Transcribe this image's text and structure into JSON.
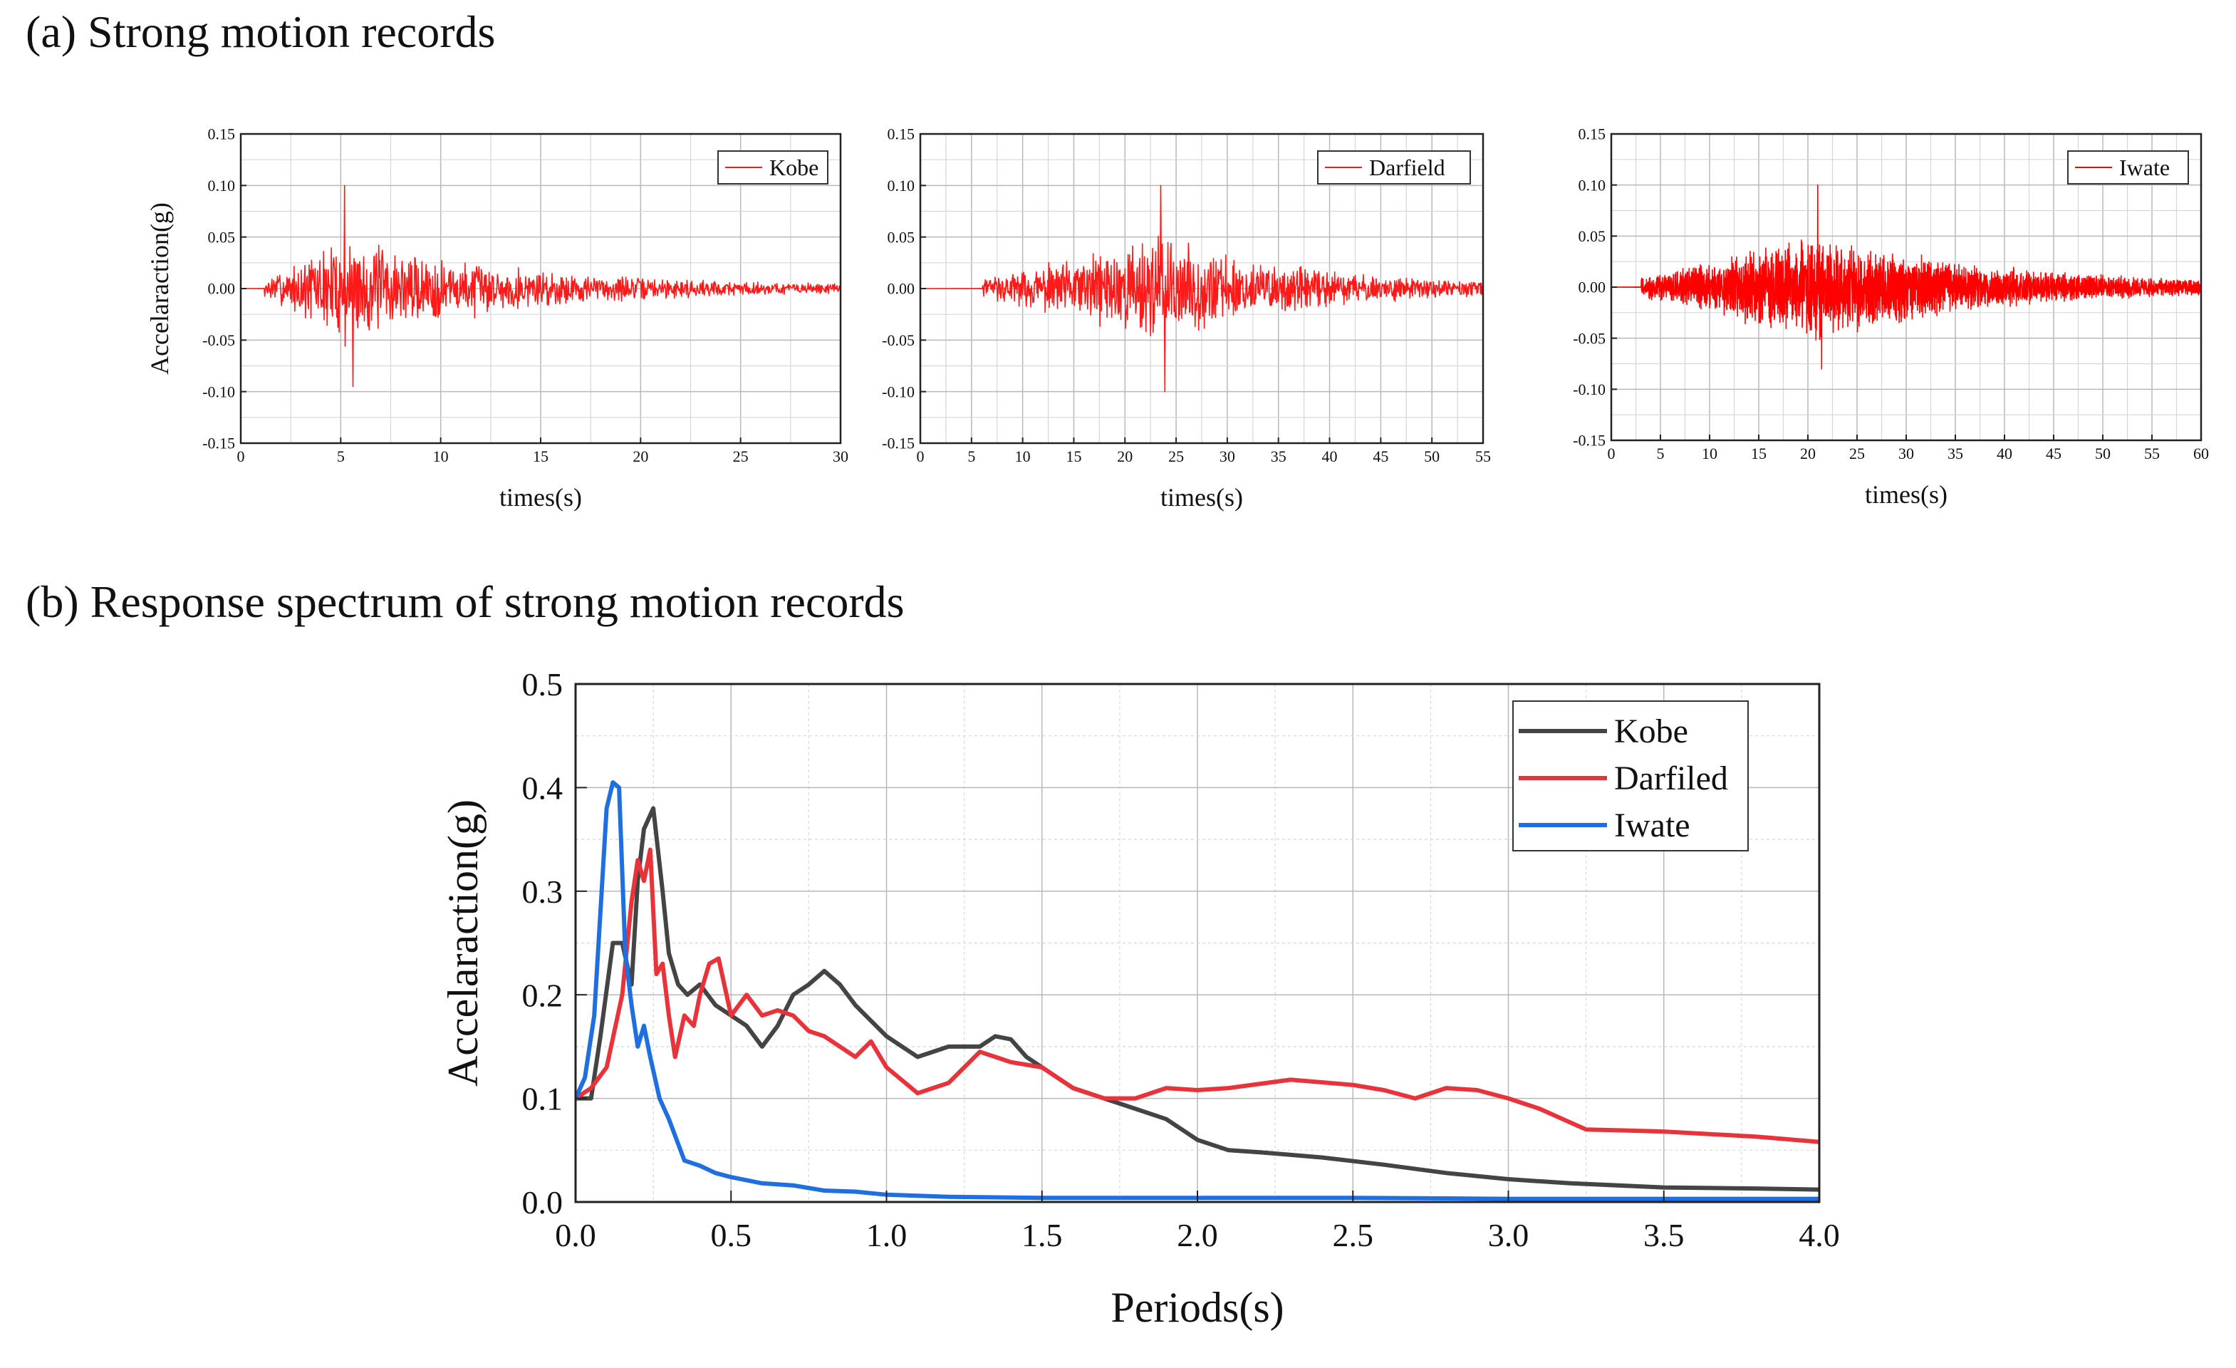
{
  "section_a": {
    "title": "(a) Strong motion records"
  },
  "section_b": {
    "title": "(b) Response spectrum of strong motion records"
  },
  "chart_data": [
    {
      "type": "line",
      "title": "Kobe",
      "xlabel": "times(s)",
      "ylabel": "Accelaraction(g)",
      "xlim": [
        0,
        30
      ],
      "ylim": [
        -0.15,
        0.15
      ],
      "xticks": [
        0,
        5,
        10,
        15,
        20,
        25,
        30
      ],
      "xtick_labels": [
        "0",
        "5",
        "10",
        "15",
        "20",
        "25",
        "30"
      ],
      "yticks": [
        0.15,
        0.1,
        0.05,
        0.0,
        -0.05,
        -0.1,
        -0.15
      ],
      "ytick_labels": [
        "0.15",
        "0.10",
        "0.05",
        "0.00",
        "-0.05",
        "-0.10",
        "-0.15"
      ],
      "grid": true,
      "legend": "top-right",
      "series": [
        {
          "name": "Kobe",
          "color": "#ff1a1a",
          "onset": 1.2,
          "peak_time": 5.2,
          "peak": 0.1,
          "min": -0.095,
          "decay_time": 9.0,
          "dt": 0.03,
          "seed": 7
        }
      ]
    },
    {
      "type": "line",
      "title": "Darfield",
      "xlabel": "times(s)",
      "ylabel": "",
      "xlim": [
        0,
        55
      ],
      "ylim": [
        -0.15,
        0.15
      ],
      "xticks": [
        0,
        5,
        10,
        15,
        20,
        25,
        30,
        35,
        40,
        45,
        50,
        55
      ],
      "xtick_labels": [
        "0",
        "5",
        "10",
        "15",
        "20",
        "25",
        "30",
        "35",
        "40",
        "45",
        "50",
        "55"
      ],
      "yticks": [
        0.15,
        0.1,
        0.05,
        0.0,
        -0.05,
        -0.1,
        -0.15
      ],
      "ytick_labels": [
        "0.15",
        "0.10",
        "0.05",
        "0.00",
        "-0.05",
        "-0.10",
        "-0.15"
      ],
      "grid": true,
      "legend": "top-right",
      "series": [
        {
          "name": "Darfield",
          "color": "#ff1a1a",
          "onset": 6.0,
          "peak_time": 23.5,
          "peak": 0.1,
          "min": -0.1,
          "decay_time": 14.0,
          "dt": 0.05,
          "seed": 11
        }
      ]
    },
    {
      "type": "line",
      "title": "Iwate",
      "xlabel": "times(s)",
      "ylabel": "",
      "xlim": [
        0,
        60
      ],
      "ylim": [
        -0.15,
        0.15
      ],
      "xticks": [
        0,
        5,
        10,
        15,
        20,
        25,
        30,
        35,
        40,
        45,
        50,
        55,
        60
      ],
      "xtick_labels": [
        "0",
        "5",
        "10",
        "15",
        "20",
        "25",
        "30",
        "35",
        "40",
        "45",
        "50",
        "55",
        "60"
      ],
      "yticks": [
        0.15,
        0.1,
        0.05,
        0.0,
        -0.05,
        -0.1,
        -0.15
      ],
      "ytick_labels": [
        "0.15",
        "0.10",
        "0.05",
        "0.00",
        "-0.05",
        "-0.10",
        "-0.15"
      ],
      "grid": true,
      "legend": "top-right",
      "series": [
        {
          "name": "Iwate",
          "color": "#ff0000",
          "onset": 3.0,
          "peak_time": 21.0,
          "peak": 0.1,
          "min": -0.08,
          "decay_time": 18.0,
          "dt": 0.02,
          "seed": 23
        }
      ]
    },
    {
      "type": "line",
      "title": "",
      "xlabel": "Periods(s)",
      "ylabel": "Accelaraction(g)",
      "xlim": [
        0,
        4
      ],
      "ylim": [
        0,
        0.5
      ],
      "xticks": [
        0,
        0.5,
        1.0,
        1.5,
        2.0,
        2.5,
        3.0,
        3.5,
        4.0
      ],
      "xtick_labels": [
        "0.0",
        "0.5",
        "1.0",
        "1.5",
        "2.0",
        "2.5",
        "3.0",
        "3.5",
        "4.0"
      ],
      "yticks": [
        0,
        0.1,
        0.2,
        0.3,
        0.4,
        0.5
      ],
      "ytick_labels": [
        "0.0",
        "0.1",
        "0.2",
        "0.3",
        "0.4",
        "0.5"
      ],
      "grid": true,
      "legend": "top-right",
      "series": [
        {
          "name": "Kobe",
          "color": "#444444",
          "x": [
            0,
            0.05,
            0.08,
            0.12,
            0.15,
            0.18,
            0.2,
            0.22,
            0.25,
            0.28,
            0.3,
            0.33,
            0.36,
            0.4,
            0.45,
            0.5,
            0.55,
            0.6,
            0.65,
            0.7,
            0.75,
            0.8,
            0.85,
            0.9,
            1.0,
            1.1,
            1.2,
            1.25,
            1.3,
            1.35,
            1.4,
            1.45,
            1.5,
            1.6,
            1.7,
            1.8,
            1.9,
            2.0,
            2.1,
            2.2,
            2.4,
            2.6,
            2.8,
            3.0,
            3.2,
            3.5,
            3.8,
            4.0
          ],
          "y": [
            0.1,
            0.1,
            0.16,
            0.25,
            0.25,
            0.21,
            0.31,
            0.36,
            0.38,
            0.3,
            0.24,
            0.21,
            0.2,
            0.21,
            0.19,
            0.18,
            0.17,
            0.15,
            0.17,
            0.2,
            0.21,
            0.223,
            0.21,
            0.19,
            0.16,
            0.14,
            0.15,
            0.15,
            0.15,
            0.16,
            0.157,
            0.14,
            0.13,
            0.11,
            0.1,
            0.09,
            0.08,
            0.06,
            0.05,
            0.048,
            0.043,
            0.036,
            0.028,
            0.022,
            0.018,
            0.014,
            0.013,
            0.012
          ]
        },
        {
          "name": "Darfiled",
          "color": "#e8333a",
          "x": [
            0,
            0.05,
            0.1,
            0.15,
            0.18,
            0.2,
            0.22,
            0.24,
            0.26,
            0.28,
            0.3,
            0.32,
            0.35,
            0.38,
            0.4,
            0.43,
            0.46,
            0.5,
            0.55,
            0.6,
            0.65,
            0.7,
            0.75,
            0.8,
            0.85,
            0.9,
            0.95,
            1.0,
            1.1,
            1.2,
            1.3,
            1.35,
            1.4,
            1.5,
            1.6,
            1.7,
            1.8,
            1.9,
            2.0,
            2.1,
            2.3,
            2.5,
            2.6,
            2.7,
            2.8,
            2.9,
            3.0,
            3.1,
            3.25,
            3.5,
            3.8,
            4.0
          ],
          "y": [
            0.1,
            0.11,
            0.13,
            0.2,
            0.29,
            0.33,
            0.31,
            0.34,
            0.22,
            0.23,
            0.18,
            0.14,
            0.18,
            0.17,
            0.2,
            0.23,
            0.235,
            0.18,
            0.2,
            0.18,
            0.185,
            0.18,
            0.165,
            0.16,
            0.15,
            0.14,
            0.155,
            0.13,
            0.105,
            0.115,
            0.145,
            0.14,
            0.135,
            0.13,
            0.11,
            0.1,
            0.1,
            0.11,
            0.108,
            0.11,
            0.118,
            0.113,
            0.108,
            0.1,
            0.11,
            0.108,
            0.1,
            0.09,
            0.07,
            0.068,
            0.063,
            0.058
          ]
        },
        {
          "name": "Iwate",
          "color": "#1f6fe0",
          "x": [
            0,
            0.03,
            0.06,
            0.08,
            0.1,
            0.12,
            0.14,
            0.16,
            0.18,
            0.2,
            0.22,
            0.24,
            0.27,
            0.3,
            0.35,
            0.4,
            0.45,
            0.5,
            0.6,
            0.7,
            0.8,
            0.9,
            1.0,
            1.2,
            1.5,
            2.0,
            2.5,
            3.0,
            3.5,
            4.0
          ],
          "y": [
            0.1,
            0.12,
            0.18,
            0.28,
            0.38,
            0.405,
            0.4,
            0.24,
            0.19,
            0.15,
            0.17,
            0.14,
            0.1,
            0.08,
            0.04,
            0.035,
            0.028,
            0.024,
            0.018,
            0.016,
            0.011,
            0.01,
            0.007,
            0.005,
            0.004,
            0.004,
            0.004,
            0.003,
            0.003,
            0.003
          ]
        }
      ]
    }
  ]
}
